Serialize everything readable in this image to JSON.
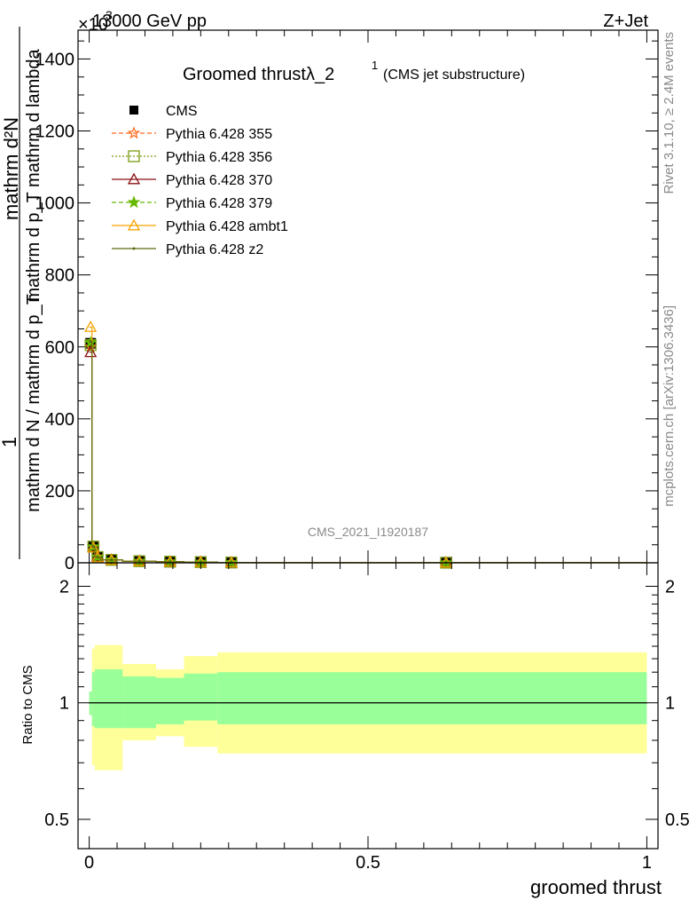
{
  "header": {
    "left": "13000 GeV pp",
    "right": "Z+Jet",
    "exponent": "×10",
    "exponent_power": "3"
  },
  "side_labels": {
    "rivet": "Rivet 3.1.10, ≥ 2.4M events",
    "mcplots": "mcplots.cern.ch [arXiv:1306.3436]"
  },
  "title": {
    "main": "Groomed thrustλ_2",
    "superscript": "1",
    "sub": "(CMS jet substructure)"
  },
  "watermark": "CMS_2021_I1920187",
  "main_panel": {
    "ylabel": {
      "one": "1",
      "numerator": "mathrm d²N",
      "numerator_2": "mathrm d p_T mathrm d lambda",
      "denominator": "mathrm d N / mathrm d p_T",
      "denominator_2": "mathrm d p_T"
    },
    "ylabel_lines": [
      "1",
      "mathrm d N / mathrm d p",
      "mathrm d²N",
      "mathrm d p_T mathrm d lambda"
    ],
    "yticks": [
      "0",
      "200",
      "400",
      "600",
      "800",
      "1000",
      "1200",
      "1400"
    ]
  },
  "ratio_panel": {
    "ylabel": "Ratio to CMS",
    "yticks": [
      "0.5",
      "1",
      "2"
    ]
  },
  "xlabel": "groomed thrust",
  "xticks": [
    "0",
    "0.5",
    "1"
  ],
  "legend": [
    {
      "label": "CMS",
      "color": "#000000",
      "marker": "square-filled",
      "line": "none"
    },
    {
      "label": "Pythia 6.428 355",
      "color": "#ff6a1a",
      "marker": "star",
      "line": "dashed"
    },
    {
      "label": "Pythia 6.428 356",
      "color": "#7a9a10",
      "marker": "square-open",
      "line": "dotted"
    },
    {
      "label": "Pythia 6.428 370",
      "color": "#8b0f14",
      "marker": "triangle-open",
      "line": "solid"
    },
    {
      "label": "Pythia 6.428 379",
      "color": "#66b800",
      "marker": "star-small",
      "line": "dashed"
    },
    {
      "label": "Pythia 6.428 ambt1",
      "color": "#f5a300",
      "marker": "triangle-open",
      "line": "solid"
    },
    {
      "label": "Pythia 6.428 z2",
      "color": "#5a6a10",
      "marker": "dot",
      "line": "solid"
    }
  ],
  "chart_data": {
    "type": "line",
    "title": "Groomed thrustλ_2^1 (CMS jet substructure)",
    "xlabel": "groomed thrust",
    "ylabel": "1 / (mathrm d N / mathrm d p_T) · mathrm d²N / (mathrm d p_T mathrm d lambda)",
    "y_scale_multiplier": 1000,
    "xlim": [
      -0.02,
      1.02
    ],
    "ylim": [
      0,
      1480
    ],
    "bin_edges": [
      0,
      0.005,
      0.01,
      0.02,
      0.06,
      0.12,
      0.17,
      0.23,
      0.28,
      1.0
    ],
    "x": [
      0.0025,
      0.0075,
      0.015,
      0.04,
      0.09,
      0.145,
      0.2,
      0.255,
      0.64
    ],
    "series": [
      {
        "name": "CMS",
        "values": [
          610,
          45,
          16,
          8,
          4.5,
          3,
          2,
          0.8,
          0.3
        ]
      },
      {
        "name": "Pythia 6.428 355",
        "values": [
          600,
          44,
          17,
          8.2,
          4.6,
          3.1,
          2.1,
          0.8,
          0.3
        ]
      },
      {
        "name": "Pythia 6.428 356",
        "values": [
          605,
          45,
          16,
          8,
          4.5,
          3,
          2,
          0.8,
          0.3
        ]
      },
      {
        "name": "Pythia 6.428 370",
        "values": [
          585,
          43,
          17,
          8.5,
          4.8,
          3.2,
          2.2,
          0.9,
          0.3
        ]
      },
      {
        "name": "Pythia 6.428 379",
        "values": [
          612,
          45,
          16,
          8,
          4.4,
          2.9,
          1.9,
          0.8,
          0.3
        ]
      },
      {
        "name": "Pythia 6.428 ambt1",
        "values": [
          655,
          42,
          15,
          7.6,
          4.3,
          2.9,
          1.9,
          0.7,
          0.3
        ]
      },
      {
        "name": "Pythia 6.428 z2",
        "values": [
          615,
          45,
          16,
          8,
          4.5,
          3,
          2,
          0.8,
          0.3
        ]
      }
    ],
    "ratio": {
      "ylabel": "Ratio to CMS",
      "ylim": [
        0.42,
        2.3
      ],
      "yscale": "log",
      "band_edges": [
        0,
        0.005,
        0.01,
        0.06,
        0.12,
        0.17,
        0.23,
        1.0
      ],
      "band_inner": [
        [
          0.93,
          1.07
        ],
        [
          0.87,
          1.2
        ],
        [
          0.86,
          1.22
        ],
        [
          0.86,
          1.17
        ],
        [
          0.88,
          1.16
        ],
        [
          0.9,
          1.19
        ],
        [
          0.88,
          1.2
        ]
      ],
      "band_outer": [
        [
          0.95,
          1.04
        ],
        [
          0.69,
          1.38
        ],
        [
          0.67,
          1.41
        ],
        [
          0.8,
          1.26
        ],
        [
          0.82,
          1.22
        ],
        [
          0.77,
          1.32
        ],
        [
          0.74,
          1.35
        ]
      ]
    }
  }
}
